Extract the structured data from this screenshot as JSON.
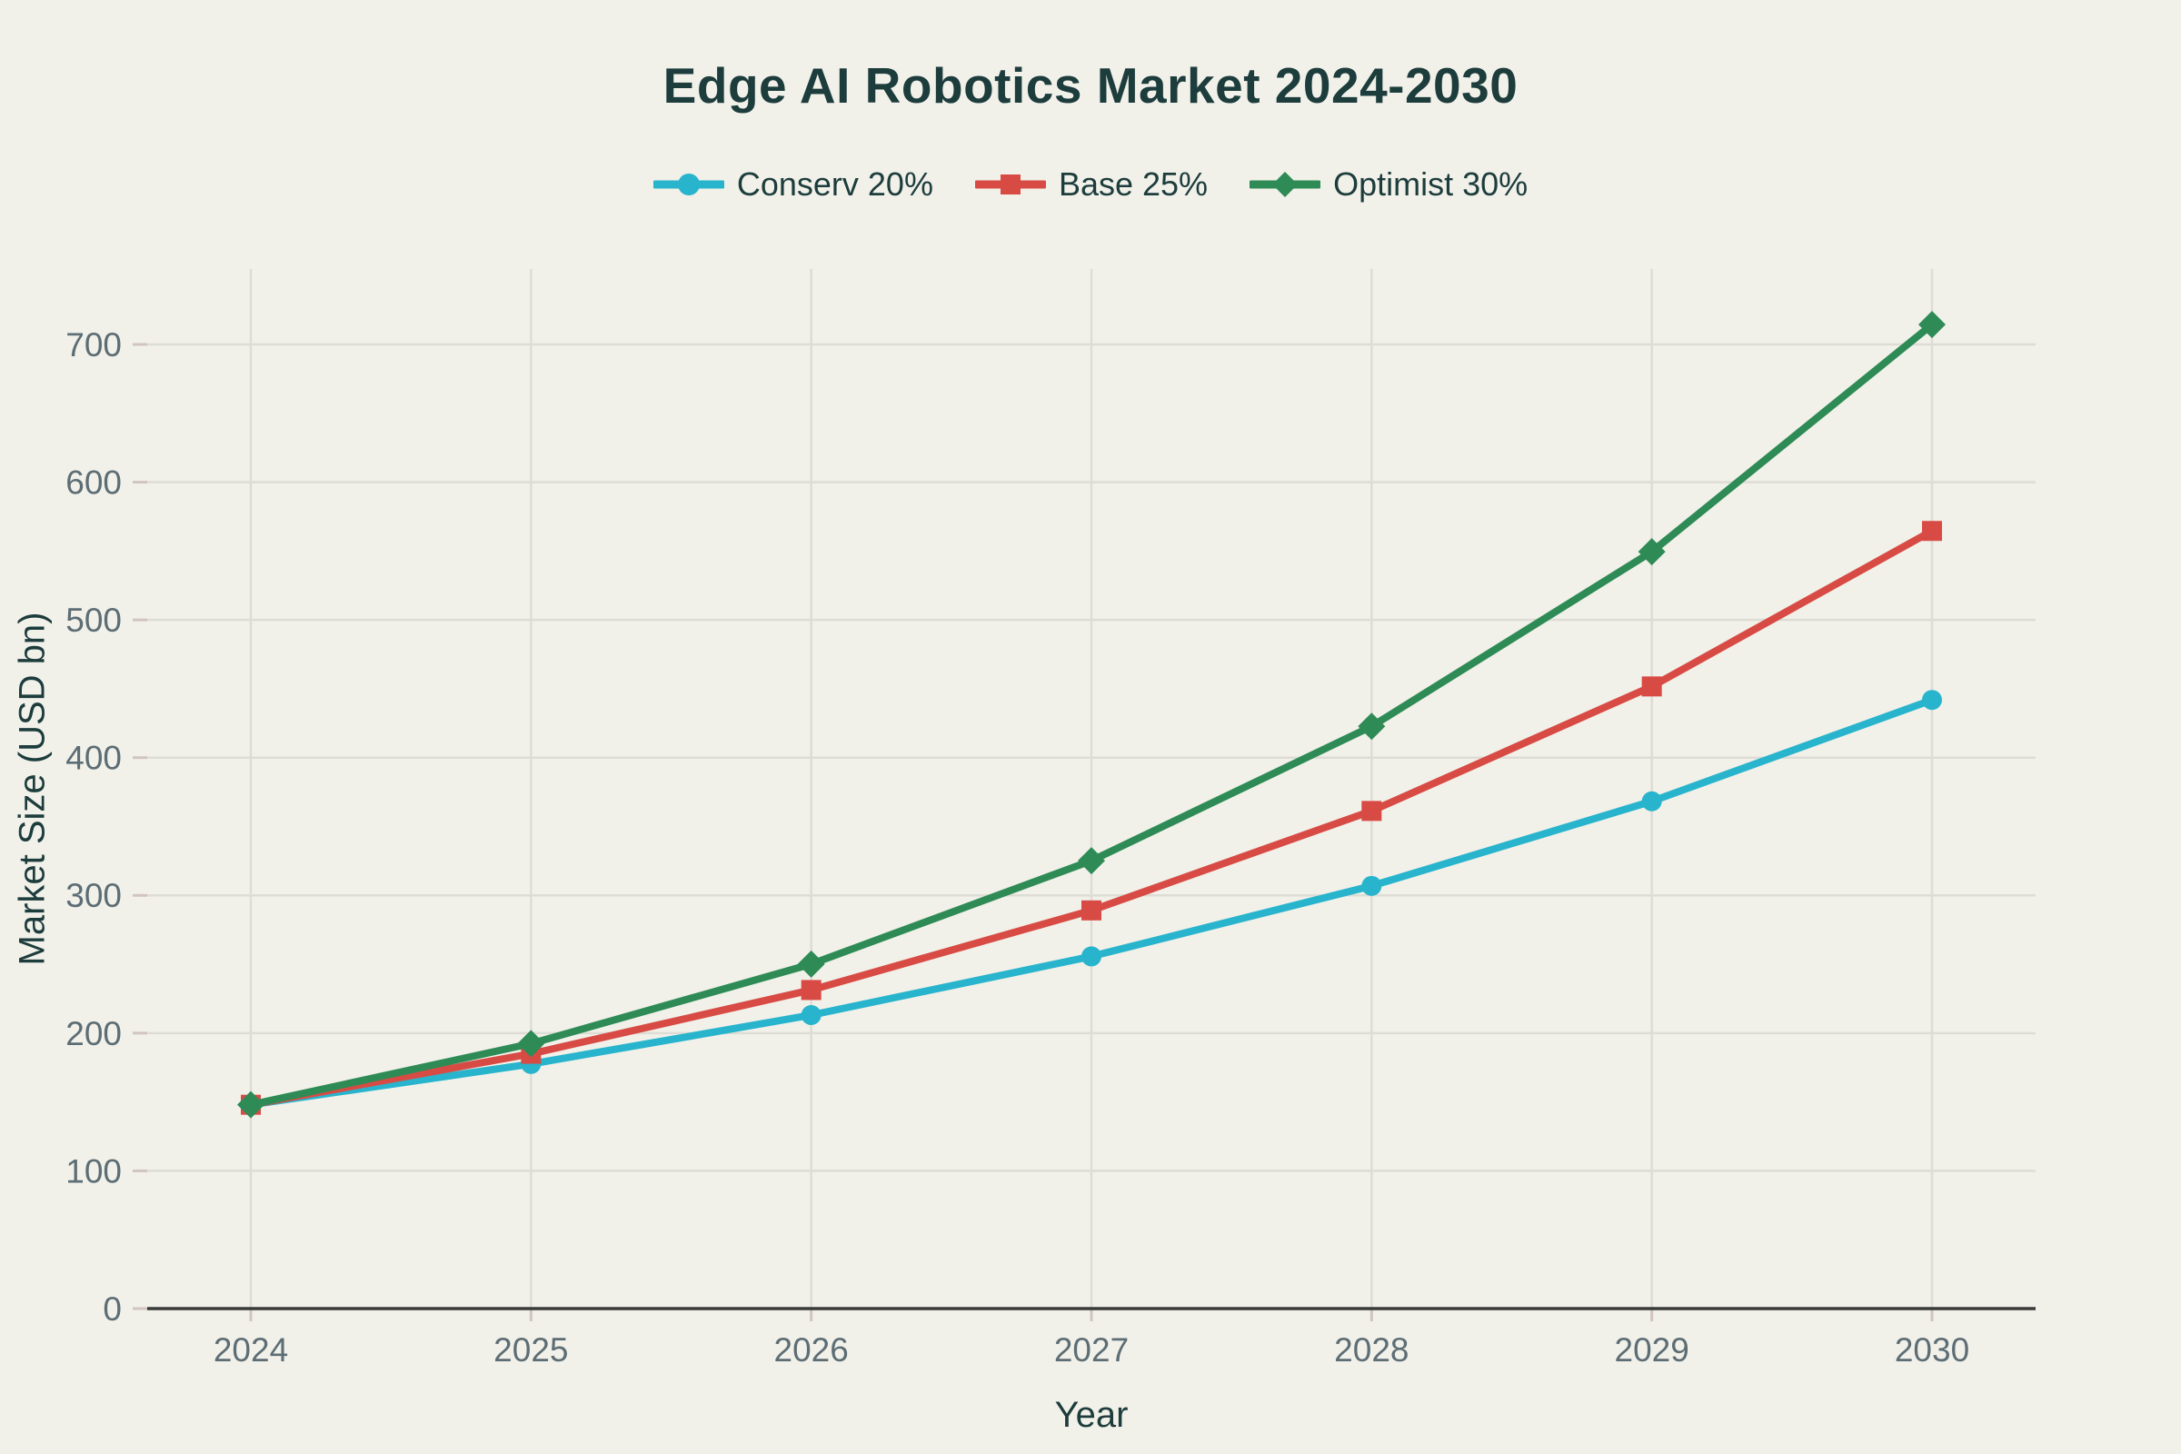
{
  "chart_data": {
    "type": "line",
    "title": "Edge AI Robotics Market 2024-2030",
    "xlabel": "Year",
    "ylabel": "Market Size (USD bn)",
    "x": [
      2024,
      2025,
      2026,
      2027,
      2028,
      2029,
      2030
    ],
    "series": [
      {
        "name": "Conserv 20%",
        "color": "#28b4cc",
        "marker": "circle",
        "values": [
          148.0,
          177.6,
          213.1,
          255.7,
          306.9,
          368.3,
          441.9
        ]
      },
      {
        "name": "Base 25%",
        "color": "#d84b44",
        "marker": "square",
        "values": [
          148.0,
          185.0,
          231.3,
          289.1,
          361.3,
          451.7,
          564.6
        ]
      },
      {
        "name": "Optimist 30%",
        "color": "#2e8b55",
        "marker": "diamond",
        "values": [
          148.0,
          192.4,
          250.1,
          325.2,
          422.7,
          549.5,
          714.4
        ]
      }
    ],
    "yticks": [
      0,
      100,
      200,
      300,
      400,
      500,
      600,
      700
    ],
    "ylim": [
      0,
      755
    ],
    "grid": true,
    "legend_position": "top-center"
  },
  "colors": {
    "background": "#f1f1ea",
    "title_text": "#1d3c3c",
    "tick_text": "#5d6d74",
    "gridline": "#ddddd5",
    "axis_line": "#3b3b3b",
    "tick_mark": "#d2c4c0"
  }
}
